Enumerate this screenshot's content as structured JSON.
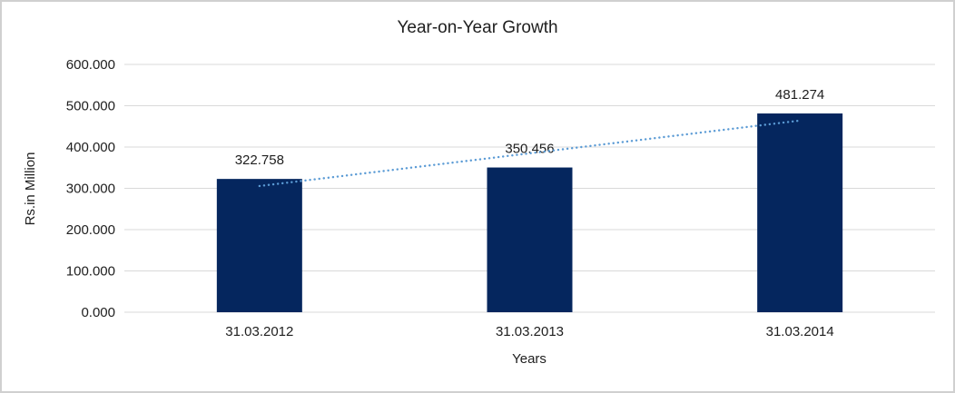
{
  "chart_data": {
    "type": "bar",
    "title": "Year-on-Year Growth",
    "categories": [
      "31.03.2012",
      "31.03.2013",
      "31.03.2014"
    ],
    "values": [
      322.758,
      350.456,
      481.274
    ],
    "value_labels": [
      "322.758",
      "350.456",
      "481.274"
    ],
    "xlabel": "Years",
    "ylabel": "Rs.in Million",
    "ylim": [
      0,
      600
    ],
    "ytick_values": [
      0,
      100,
      200,
      300,
      400,
      500,
      600
    ],
    "ytick_labels": [
      "0.000",
      "100.000",
      "200.000",
      "300.000",
      "400.000",
      "500.000",
      "600.000"
    ],
    "grid": true,
    "legend": false,
    "trendline": {
      "present": true,
      "style": "dotted",
      "color": "#5B9BD5"
    },
    "colors": {
      "bar": "#05265E",
      "gridline": "#D9D9D9",
      "axis_line": "#D9D9D9",
      "text": "#202020"
    }
  }
}
